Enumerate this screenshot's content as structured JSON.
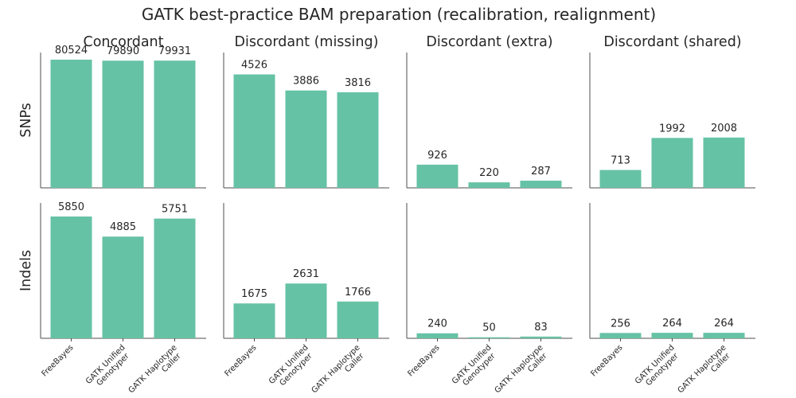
{
  "figure": {
    "title": "GATK best-practice BAM preparation (recalibration, realignment)"
  },
  "chart_data": {
    "type": "bar",
    "title": "GATK best-practice BAM preparation (recalibration, realignment)",
    "bar_color": "#66c2a5",
    "categories": [
      [
        "FreeBayes"
      ],
      [
        "GATK Unified",
        "Genotyper"
      ],
      [
        "GATK Haplotype",
        "Caller"
      ]
    ],
    "columns": [
      "Concordant",
      "Discordant (missing)",
      "Discordant (extra)",
      "Discordant (shared)"
    ],
    "rows": [
      "SNPs",
      "Indels"
    ],
    "grid": false,
    "sharey": "row",
    "panels": [
      {
        "row": "SNPs",
        "column": "Concordant",
        "values": [
          80524,
          79890,
          79931
        ],
        "ylim": [
          0,
          85000
        ]
      },
      {
        "row": "SNPs",
        "column": "Discordant (missing)",
        "values": [
          4526,
          3886,
          3816
        ],
        "ylim": [
          0,
          5400
        ]
      },
      {
        "row": "SNPs",
        "column": "Discordant (extra)",
        "values": [
          926,
          220,
          287
        ],
        "ylim": [
          0,
          5400
        ]
      },
      {
        "row": "SNPs",
        "column": "Discordant (shared)",
        "values": [
          713,
          1992,
          2008
        ],
        "ylim": [
          0,
          5400
        ]
      },
      {
        "row": "Indels",
        "column": "Concordant",
        "values": [
          5850,
          4885,
          5751
        ],
        "ylim": [
          0,
          6500
        ]
      },
      {
        "row": "Indels",
        "column": "Discordant (missing)",
        "values": [
          1675,
          2631,
          1766
        ],
        "ylim": [
          0,
          6500
        ]
      },
      {
        "row": "Indels",
        "column": "Discordant (extra)",
        "values": [
          240,
          50,
          83
        ],
        "ylim": [
          0,
          6500
        ]
      },
      {
        "row": "Indels",
        "column": "Discordant (shared)",
        "values": [
          256,
          264,
          264
        ],
        "ylim": [
          0,
          6500
        ]
      }
    ]
  }
}
